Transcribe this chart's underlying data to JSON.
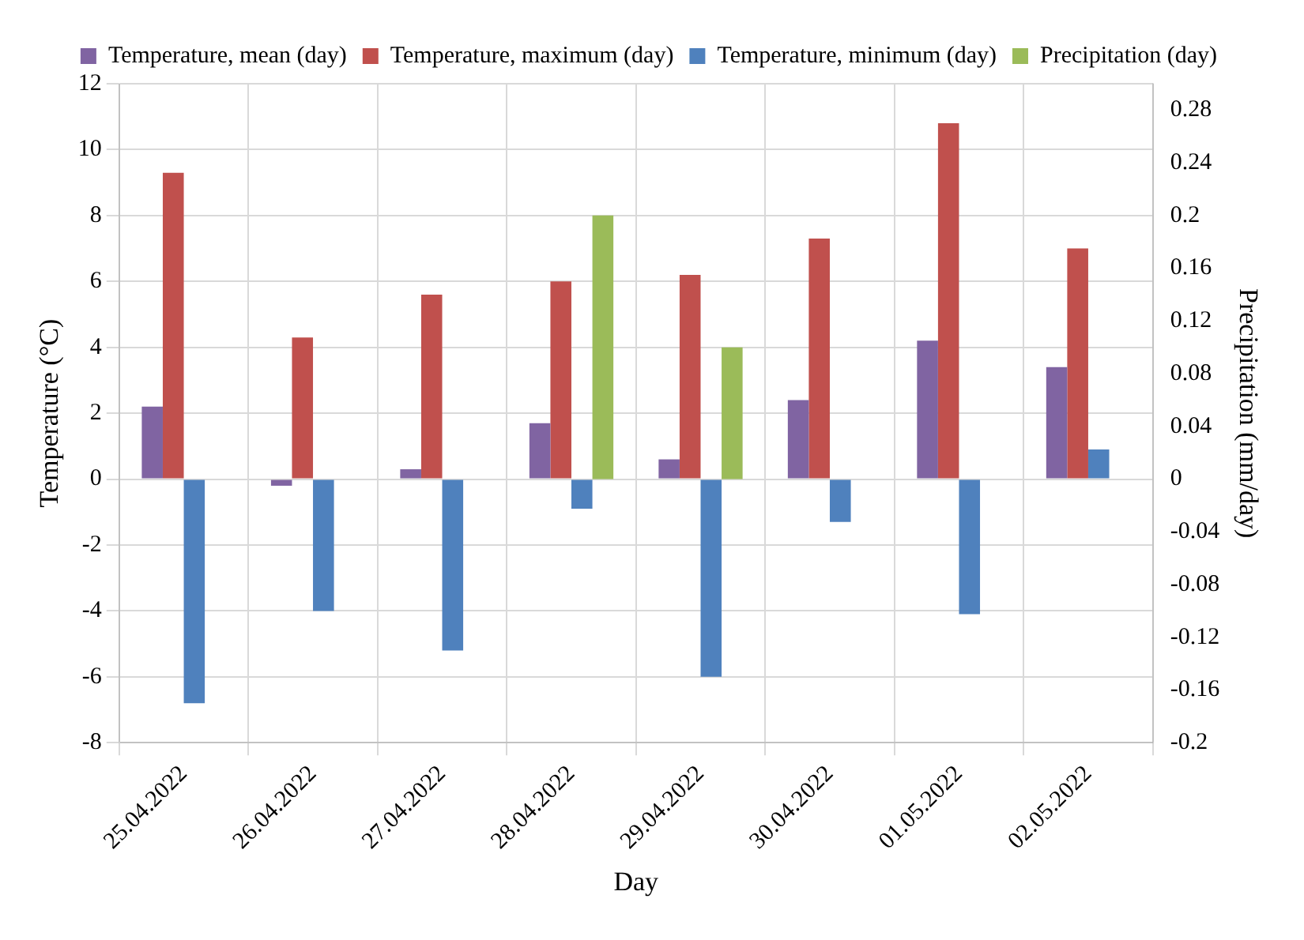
{
  "chart_data": {
    "type": "bar",
    "xlabel": "Day",
    "ylabel": "Temperature (°C)",
    "y2label": "Precipitation (mm/day)",
    "categories": [
      "25.04.2022",
      "26.04.2022",
      "27.04.2022",
      "28.04.2022",
      "29.04.2022",
      "30.04.2022",
      "01.05.2022",
      "02.05.2022"
    ],
    "series": [
      {
        "name": "Temperature, mean (day)",
        "color": "#8064a2",
        "values": [
          2.2,
          -0.2,
          0.3,
          1.7,
          0.6,
          2.4,
          4.2,
          3.4
        ]
      },
      {
        "name": "Temperature, maximum (day)",
        "color": "#c0504d",
        "values": [
          9.3,
          4.3,
          5.6,
          6.0,
          6.2,
          7.3,
          10.8,
          7.0
        ]
      },
      {
        "name": "Temperature, minimum (day)",
        "color": "#4f81bd",
        "values": [
          -6.8,
          -4.0,
          -5.2,
          -0.9,
          -6.0,
          -1.3,
          -4.1,
          0.9
        ]
      },
      {
        "name": "Precipitation (day)",
        "color": "#9bbb59",
        "axis": "y2",
        "values": [
          0,
          0,
          0,
          0.2,
          0.1,
          0,
          0,
          0
        ]
      }
    ],
    "ylim": [
      -8,
      12
    ],
    "yticks": [
      -8,
      -6,
      -4,
      -2,
      0,
      2,
      4,
      6,
      8,
      10,
      12
    ],
    "y2lim": [
      -0.2,
      0.3
    ],
    "y2ticks": [
      -0.2,
      -0.16,
      -0.12,
      -0.08,
      -0.04,
      0,
      0.04,
      0.08,
      0.12,
      0.16,
      0.2,
      0.24,
      0.28
    ],
    "grid": true,
    "legend": "top"
  }
}
